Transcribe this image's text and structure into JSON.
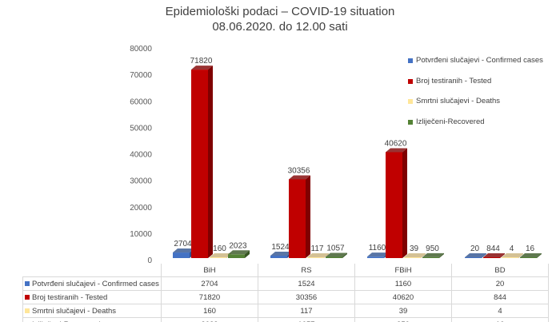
{
  "chart_data": {
    "type": "bar",
    "title": "Epidemiološki podaci – COVID-19 situation",
    "subtitle": "08.06.2020. do 12.00 sati",
    "categories": [
      "BiH",
      "RS",
      "FBiH",
      "BD"
    ],
    "ylim": [
      0,
      80000
    ],
    "yticks": [
      0,
      10000,
      20000,
      30000,
      40000,
      50000,
      60000,
      70000,
      80000
    ],
    "legend_position": "right",
    "series": [
      {
        "name": "Potvrđeni slučajevi - Confirmed cases",
        "color": "#4472c4",
        "side": "#2f528f",
        "values": [
          2704,
          1524,
          1160,
          20
        ]
      },
      {
        "name": "Broj testiranih - Tested",
        "color": "#c00000",
        "side": "#7f0000",
        "values": [
          71820,
          30356,
          40620,
          844
        ]
      },
      {
        "name": "Smrtni slučajevi - Deaths",
        "color": "#ffe699",
        "side": "#c9b27a",
        "values": [
          160,
          117,
          39,
          4
        ]
      },
      {
        "name": "Izliječeni-Recovered",
        "color": "#548235",
        "side": "#375623",
        "values": [
          2023,
          1057,
          950,
          16
        ]
      }
    ]
  }
}
